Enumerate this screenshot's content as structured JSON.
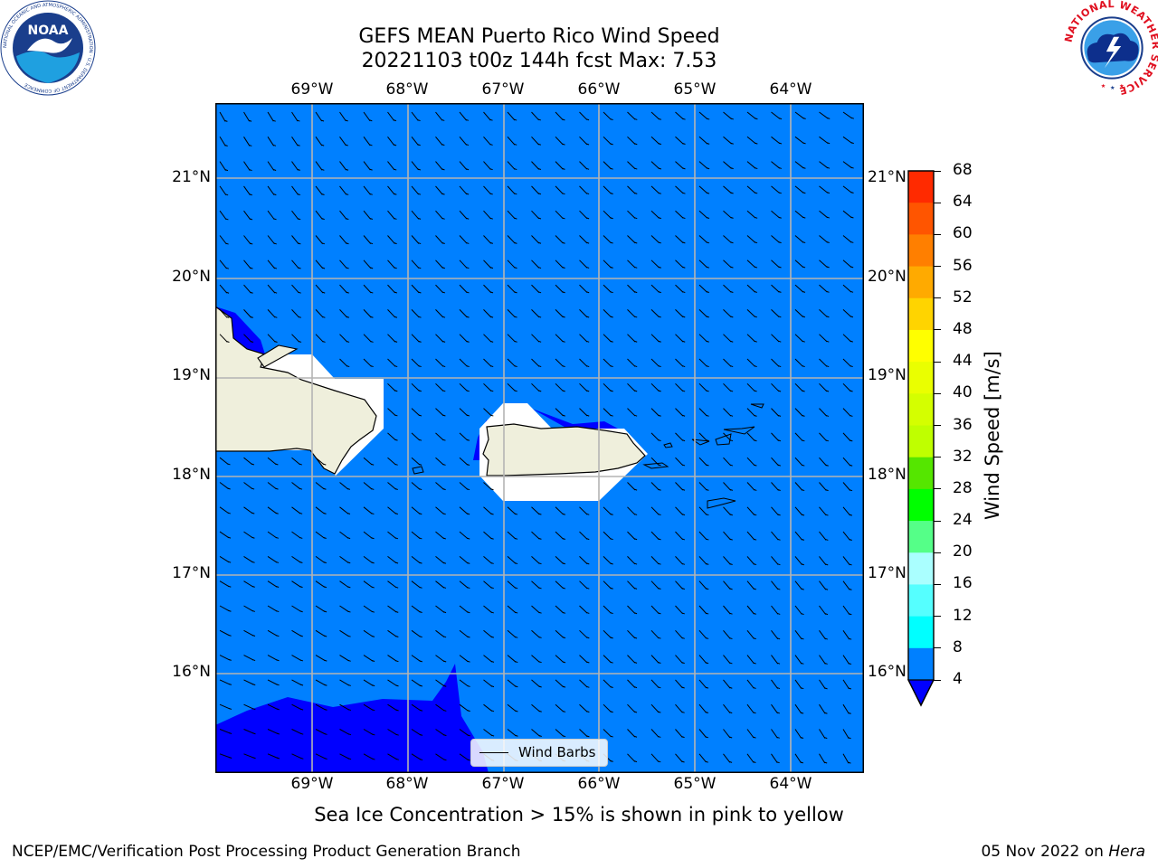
{
  "title_line1": "GEFS MEAN Puerto Rico Wind Speed",
  "title_line2": "20221103 t00z 144h fcst   Max: 7.53",
  "lon_labels": [
    "69°W",
    "68°W",
    "67°W",
    "66°W",
    "65°W",
    "64°W"
  ],
  "lat_labels": [
    "21°N",
    "20°N",
    "19°N",
    "18°N",
    "17°N",
    "16°N"
  ],
  "colorbar": {
    "title": "Wind Speed [m/s]",
    "ticks": [
      "68",
      "64",
      "60",
      "56",
      "52",
      "48",
      "44",
      "40",
      "36",
      "32",
      "28",
      "24",
      "20",
      "16",
      "12",
      "8",
      "4"
    ],
    "colors": [
      "#ff0000",
      "#ff2a00",
      "#ff5500",
      "#ff7f00",
      "#ffaa00",
      "#ffd400",
      "#ffff00",
      "#eaff00",
      "#d4ff00",
      "#bfff00",
      "#55e600",
      "#00ff00",
      "#55ff88",
      "#aaffff",
      "#55ffff",
      "#00ffff",
      "#0080ff"
    ],
    "extend_color": "#0000ff"
  },
  "map": {
    "ocean_color": "#0080ff",
    "low_wind_color": "#0000ff",
    "land_color": "#efefdc"
  },
  "legend_label": "Wind Barbs",
  "subtitle": "Sea Ice Concentration > 15% is shown in pink to yellow",
  "footer_left": "NCEP/EMC/Verification Post Processing Product Generation Branch",
  "footer_date": "05 Nov 2022 on ",
  "footer_host": "Hera",
  "logos": {
    "noaa_text": "NOAA",
    "noaa_ring": "NATIONAL OCEANIC AND ATMOSPHERIC ADMINISTRATION · U.S. DEPARTMENT OF COMMERCE",
    "nws_ring": "NATIONAL WEATHER SERVICE"
  }
}
